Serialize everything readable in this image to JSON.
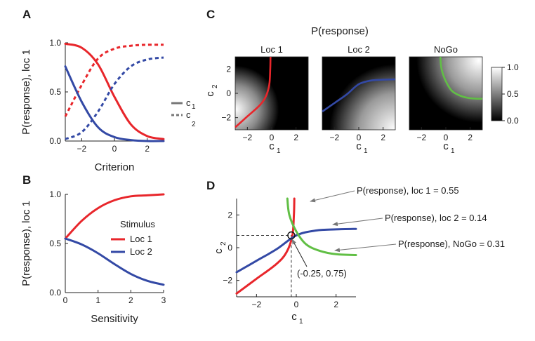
{
  "panel_labels": {
    "A": "A",
    "B": "B",
    "C": "C",
    "D": "D"
  },
  "chart_data": [
    {
      "id": "A",
      "type": "line",
      "xlabel": "Criterion",
      "ylabel": "P(response), loc 1",
      "xlim": [
        -3,
        3
      ],
      "ylim": [
        0,
        1
      ],
      "xticks": [
        "−2",
        "0",
        "2"
      ],
      "xtick_values": [
        -2,
        0,
        2
      ],
      "yticks": [
        "0.0",
        "0.5",
        "1.0"
      ],
      "ytick_values": [
        0,
        0.5,
        1
      ],
      "legend": {
        "solid_label": "c",
        "solid_sub": "1",
        "dashed_label": "c",
        "dashed_sub": "2"
      },
      "series": [
        {
          "name": "loc 1, vs c1",
          "color": "#e8262b",
          "style": "solid",
          "x": [
            -3,
            -2,
            -1,
            0,
            1,
            2,
            3
          ],
          "values": [
            0.99,
            0.95,
            0.78,
            0.45,
            0.17,
            0.05,
            0.02
          ]
        },
        {
          "name": "loc 1, vs c2",
          "color": "#e8262b",
          "style": "dashed",
          "x": [
            -3,
            -2,
            -1,
            0,
            1,
            2,
            3
          ],
          "values": [
            0.25,
            0.57,
            0.84,
            0.94,
            0.97,
            0.98,
            0.98
          ]
        },
        {
          "name": "loc 2, vs c1",
          "color": "#3349a5",
          "style": "solid",
          "x": [
            -3,
            -2,
            -1,
            0,
            1,
            2,
            3
          ],
          "values": [
            0.76,
            0.4,
            0.14,
            0.04,
            0.01,
            0.0,
            0.0
          ]
        },
        {
          "name": "loc 2, vs c2",
          "color": "#3349a5",
          "style": "dashed",
          "x": [
            -3,
            -2,
            -1,
            0,
            1,
            2,
            3
          ],
          "values": [
            0.02,
            0.09,
            0.3,
            0.58,
            0.76,
            0.83,
            0.85
          ]
        }
      ]
    },
    {
      "id": "B",
      "type": "line",
      "xlabel": "Sensitivity",
      "ylabel": "P(response), loc 1",
      "xlim": [
        0,
        3
      ],
      "ylim": [
        0,
        1
      ],
      "xticks": [
        "0",
        "1",
        "2",
        "3"
      ],
      "xtick_values": [
        0,
        1,
        2,
        3
      ],
      "yticks": [
        "0.0",
        "0.5",
        "1.0"
      ],
      "ytick_values": [
        0,
        0.5,
        1
      ],
      "legend_title": "Stimulus",
      "series": [
        {
          "name": "Loc 1",
          "color": "#e8262b",
          "x": [
            0,
            0.5,
            1,
            1.5,
            2,
            2.5,
            3
          ],
          "values": [
            0.55,
            0.73,
            0.86,
            0.94,
            0.98,
            0.99,
            1.0
          ]
        },
        {
          "name": "Loc 2",
          "color": "#3349a5",
          "x": [
            0,
            0.5,
            1,
            1.5,
            2,
            2.5,
            3
          ],
          "values": [
            0.55,
            0.49,
            0.4,
            0.29,
            0.19,
            0.12,
            0.08
          ]
        }
      ]
    },
    {
      "id": "C",
      "type": "heatmap",
      "title": "P(response)",
      "xlabel": "c",
      "xlabel_sub": "1",
      "ylabel": "c",
      "ylabel_sub": "2",
      "xlim": [
        -3,
        3
      ],
      "ylim": [
        -3,
        3
      ],
      "xticks": [
        "−2",
        "0",
        "2"
      ],
      "xtick_values": [
        -2,
        0,
        2
      ],
      "yticks": [
        "−2",
        "0",
        "2"
      ],
      "ytick_values": [
        -2,
        0,
        2
      ],
      "colorbar": {
        "ticks": [
          "1.0",
          "0.5",
          "0.0"
        ],
        "tick_values": [
          1,
          0.5,
          0
        ]
      },
      "maps": [
        {
          "title": "Loc 1",
          "contour_color": "#e8262b",
          "contour_x": [
            -3,
            -2,
            -1,
            -0.5,
            -0.2,
            -0.12,
            -0.1
          ],
          "contour_y": [
            -2.8,
            -1.9,
            -1.0,
            -0.3,
            0.7,
            2.0,
            3.0
          ]
        },
        {
          "title": "Loc 2",
          "contour_color": "#3349a5",
          "contour_x": [
            -3,
            -2,
            -1,
            0,
            1,
            2,
            3
          ],
          "contour_y": [
            -1.5,
            -0.8,
            -0.1,
            0.75,
            1.05,
            1.12,
            1.15
          ]
        },
        {
          "title": "NoGo",
          "contour_color": "#61bf45",
          "contour_x": [
            -0.45,
            -0.35,
            0,
            0.5,
            1.2,
            2,
            3
          ],
          "contour_y": [
            3.0,
            2.0,
            1.0,
            0.2,
            -0.2,
            -0.4,
            -0.45
          ]
        }
      ]
    },
    {
      "id": "D",
      "type": "line",
      "xlabel": "c",
      "xlabel_sub": "1",
      "ylabel": "c",
      "ylabel_sub": "2",
      "xlim": [
        -3,
        3
      ],
      "ylim": [
        -3,
        3
      ],
      "xticks": [
        "−2",
        "0",
        "2"
      ],
      "xtick_values": [
        -2,
        0,
        2
      ],
      "yticks": [
        "−2",
        "0",
        "2"
      ],
      "ytick_values": [
        -2,
        0,
        2
      ],
      "intersection": {
        "x": -0.25,
        "y": 0.75,
        "label": "(-0.25, 0.75)"
      },
      "annotations": [
        "P(response), loc 1 = 0.55",
        "P(response), loc 2 = 0.14",
        "P(response), NoGo = 0.31"
      ],
      "series": [
        {
          "name": "loc 1 = 0.55",
          "color": "#e8262b",
          "x": [
            -3,
            -2,
            -1,
            -0.5,
            -0.2,
            -0.12,
            -0.1
          ],
          "values": [
            -2.8,
            -1.9,
            -1.0,
            -0.3,
            0.7,
            2.0,
            3.0
          ]
        },
        {
          "name": "loc 2 = 0.14",
          "color": "#3349a5",
          "x": [
            -3,
            -2,
            -1,
            0,
            1,
            2,
            3
          ],
          "values": [
            -1.5,
            -0.8,
            -0.1,
            0.75,
            1.05,
            1.12,
            1.15
          ]
        },
        {
          "name": "NoGo = 0.31",
          "color": "#61bf45",
          "x": [
            -0.45,
            -0.35,
            0,
            0.5,
            1.2,
            2,
            3
          ],
          "values": [
            3.0,
            2.0,
            1.0,
            0.2,
            -0.2,
            -0.4,
            -0.45
          ]
        }
      ]
    }
  ]
}
